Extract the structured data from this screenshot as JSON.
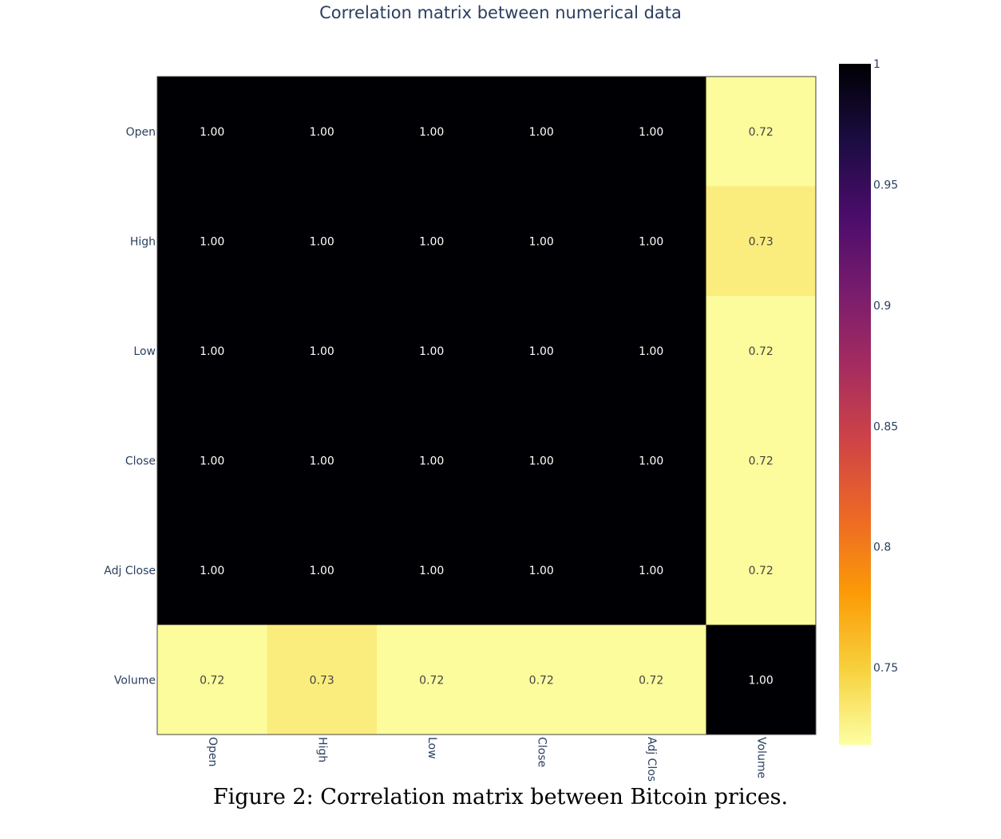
{
  "chart_data": {
    "type": "heatmap",
    "title": "Correlation matrix between numerical data",
    "rows": [
      "Open",
      "High",
      "Low",
      "Close",
      "Adj Close",
      "Volume"
    ],
    "columns": [
      "Open",
      "High",
      "Low",
      "Close",
      "Adj Clos",
      "Volume"
    ],
    "values": [
      [
        1.0,
        1.0,
        1.0,
        1.0,
        1.0,
        0.72
      ],
      [
        1.0,
        1.0,
        1.0,
        1.0,
        1.0,
        0.73
      ],
      [
        1.0,
        1.0,
        1.0,
        1.0,
        1.0,
        0.72
      ],
      [
        1.0,
        1.0,
        1.0,
        1.0,
        1.0,
        0.72
      ],
      [
        1.0,
        1.0,
        1.0,
        1.0,
        1.0,
        0.72
      ],
      [
        0.72,
        0.73,
        0.72,
        0.72,
        0.72,
        1.0
      ]
    ],
    "cell_labels": [
      [
        "1.00",
        "1.00",
        "1.00",
        "1.00",
        "1.00",
        "0.72"
      ],
      [
        "1.00",
        "1.00",
        "1.00",
        "1.00",
        "1.00",
        "0.73"
      ],
      [
        "1.00",
        "1.00",
        "1.00",
        "1.00",
        "1.00",
        "0.72"
      ],
      [
        "1.00",
        "1.00",
        "1.00",
        "1.00",
        "1.00",
        "0.72"
      ],
      [
        "1.00",
        "1.00",
        "1.00",
        "1.00",
        "1.00",
        "0.72"
      ],
      [
        "0.72",
        "0.73",
        "0.72",
        "0.72",
        "0.72",
        "1.00"
      ]
    ],
    "colorscale": "inferno (reversed)",
    "colorbar": {
      "min": 0.718,
      "max": 1,
      "ticks": [
        1,
        0.95,
        0.9,
        0.85,
        0.8,
        0.75
      ],
      "tick_labels": [
        "1",
        "0.95",
        "0.9",
        "0.85",
        "0.8",
        "0.75"
      ]
    },
    "colors": [
      "#fcffa4",
      "#f7d13d",
      "#fb9b06",
      "#ed6925",
      "#cf4446",
      "#a52c60",
      "#781c6d",
      "#4a0c6b",
      "#1b0c41",
      "#000004"
    ]
  },
  "caption": "Figure 2: Correlation matrix between Bitcoin prices."
}
